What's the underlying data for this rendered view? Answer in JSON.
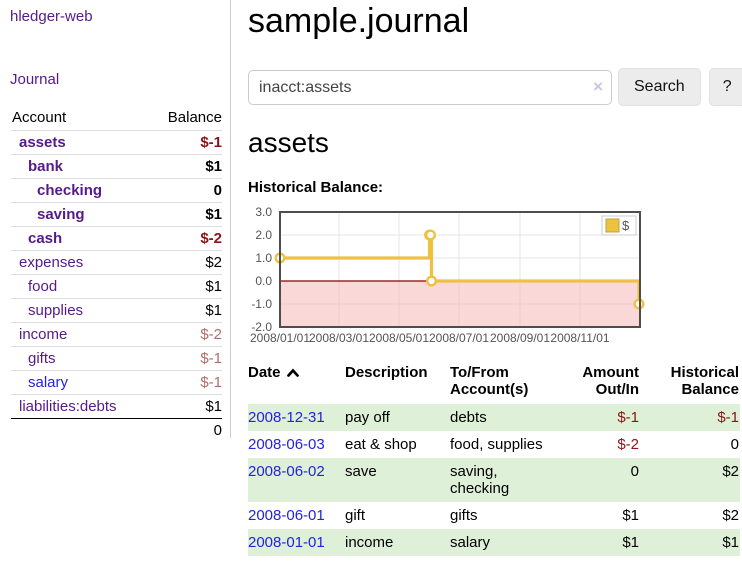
{
  "sidebar": {
    "app_title": "hledger-web",
    "nav": {
      "journal": "Journal"
    },
    "accounts_table": {
      "headers": {
        "account": "Account",
        "balance": "Balance"
      },
      "rows": [
        {
          "name": "assets",
          "balance": "$-1"
        },
        {
          "name": "bank",
          "balance": "$1"
        },
        {
          "name": "checking",
          "balance": "0"
        },
        {
          "name": "saving",
          "balance": "$1"
        },
        {
          "name": "cash",
          "balance": "$-2"
        },
        {
          "name": "expenses",
          "balance": "$2"
        },
        {
          "name": "food",
          "balance": "$1"
        },
        {
          "name": "supplies",
          "balance": "$1"
        },
        {
          "name": "income",
          "balance": "$-2"
        },
        {
          "name": "gifts",
          "balance": "$-1"
        },
        {
          "name": "salary",
          "balance": "$-1"
        },
        {
          "name": "liabilities:debts",
          "balance": "$1"
        }
      ],
      "total": "0"
    }
  },
  "main": {
    "page_title": "sample.journal",
    "search": {
      "value": "inacct:assets",
      "clear_icon": "×",
      "button_label": "Search",
      "help_label": "?"
    },
    "account_heading": "assets",
    "chart_label": "Historical Balance:"
  },
  "chart_data": {
    "type": "line",
    "title": "Historical Balance",
    "style": "step",
    "series": [
      {
        "name": "$",
        "color": "#edc240",
        "points": [
          [
            "2008-01-01",
            1
          ],
          [
            "2008-06-01",
            2
          ],
          [
            "2008-06-02",
            2
          ],
          [
            "2008-06-03",
            0
          ],
          [
            "2008-12-31",
            -1
          ]
        ]
      }
    ],
    "x_range": [
      "2008-01-01",
      "2009-01-01"
    ],
    "ylim": [
      -2,
      3
    ],
    "y_ticks": [
      3,
      2,
      1,
      0,
      -1,
      -2
    ],
    "x_tick_labels": [
      "2008/01/01",
      "2008/03/01",
      "2008/05/01",
      "2008/07/01",
      "2008/09/01",
      "2008/11/01"
    ],
    "legend": "$",
    "legend_position": "top-right",
    "grid": true,
    "zero_line_color": "#8b0000",
    "negative_region_fill": "#f5b8b8"
  },
  "register": {
    "headers": {
      "date": "Date",
      "description": "Description",
      "accounts": "To/From Account(s)",
      "amount": "Amount Out/In",
      "balance": "Historical Balance"
    },
    "rows": [
      {
        "date": "2008-12-31",
        "description": "pay off",
        "accounts": "debts",
        "amount": "$-1",
        "balance": "$-1"
      },
      {
        "date": "2008-06-03",
        "description": "eat & shop",
        "accounts": "food, supplies",
        "amount": "$-2",
        "balance": "0"
      },
      {
        "date": "2008-06-02",
        "description": "save",
        "accounts": "saving, checking",
        "amount": "0",
        "balance": "$2"
      },
      {
        "date": "2008-06-01",
        "description": "gift",
        "accounts": "gifts",
        "amount": "$1",
        "balance": "$2"
      },
      {
        "date": "2008-01-01",
        "description": "income",
        "accounts": "salary",
        "amount": "$1",
        "balance": "$1"
      }
    ]
  }
}
